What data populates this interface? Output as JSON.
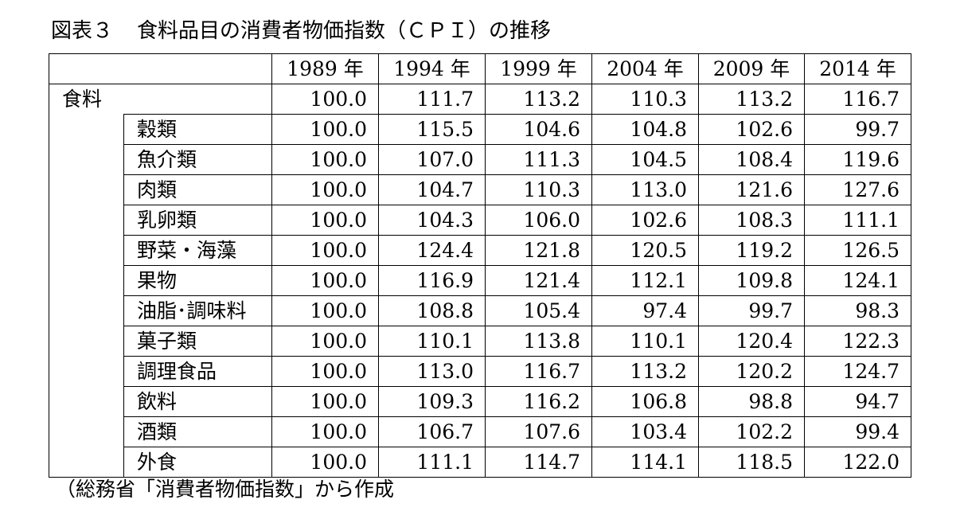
{
  "title": {
    "label": "図表３",
    "text": "食料品目の消費者物価指数（ＣＰＩ）の推移"
  },
  "table": {
    "years": [
      "1989 年",
      "1994 年",
      "1999 年",
      "2004 年",
      "2009 年",
      "2014 年"
    ],
    "top_category": "食料",
    "top_values": [
      "100.0",
      "111.7",
      "113.2",
      "110.3",
      "113.2",
      "116.7"
    ],
    "rows": [
      {
        "label": "穀類",
        "values": [
          "100.0",
          "115.5",
          "104.6",
          "104.8",
          "102.6",
          "99.7"
        ]
      },
      {
        "label": "魚介類",
        "values": [
          "100.0",
          "107.0",
          "111.3",
          "104.5",
          "108.4",
          "119.6"
        ]
      },
      {
        "label": "肉類",
        "values": [
          "100.0",
          "104.7",
          "110.3",
          "113.0",
          "121.6",
          "127.6"
        ]
      },
      {
        "label": "乳卵類",
        "values": [
          "100.0",
          "104.3",
          "106.0",
          "102.6",
          "108.3",
          "111.1"
        ]
      },
      {
        "label": "野菜・海藻",
        "values": [
          "100.0",
          "124.4",
          "121.8",
          "120.5",
          "119.2",
          "126.5"
        ]
      },
      {
        "label": "果物",
        "values": [
          "100.0",
          "116.9",
          "121.4",
          "112.1",
          "109.8",
          "124.1"
        ]
      },
      {
        "label": "油脂･調味料",
        "values": [
          "100.0",
          "108.8",
          "105.4",
          "97.4",
          "99.7",
          "98.3"
        ]
      },
      {
        "label": "菓子類",
        "values": [
          "100.0",
          "110.1",
          "113.8",
          "110.1",
          "120.4",
          "122.3"
        ]
      },
      {
        "label": "調理食品",
        "values": [
          "100.0",
          "113.0",
          "116.7",
          "113.2",
          "120.2",
          "124.7"
        ]
      },
      {
        "label": "飲料",
        "values": [
          "100.0",
          "109.3",
          "116.2",
          "106.8",
          "98.8",
          "94.7"
        ]
      },
      {
        "label": "酒類",
        "values": [
          "100.0",
          "106.7",
          "107.6",
          "103.4",
          "102.2",
          "99.4"
        ]
      },
      {
        "label": "外食",
        "values": [
          "100.0",
          "111.1",
          "114.7",
          "114.1",
          "118.5",
          "122.0"
        ]
      }
    ]
  },
  "source_note": "（総務省「消費者物価指数」から作成"
}
